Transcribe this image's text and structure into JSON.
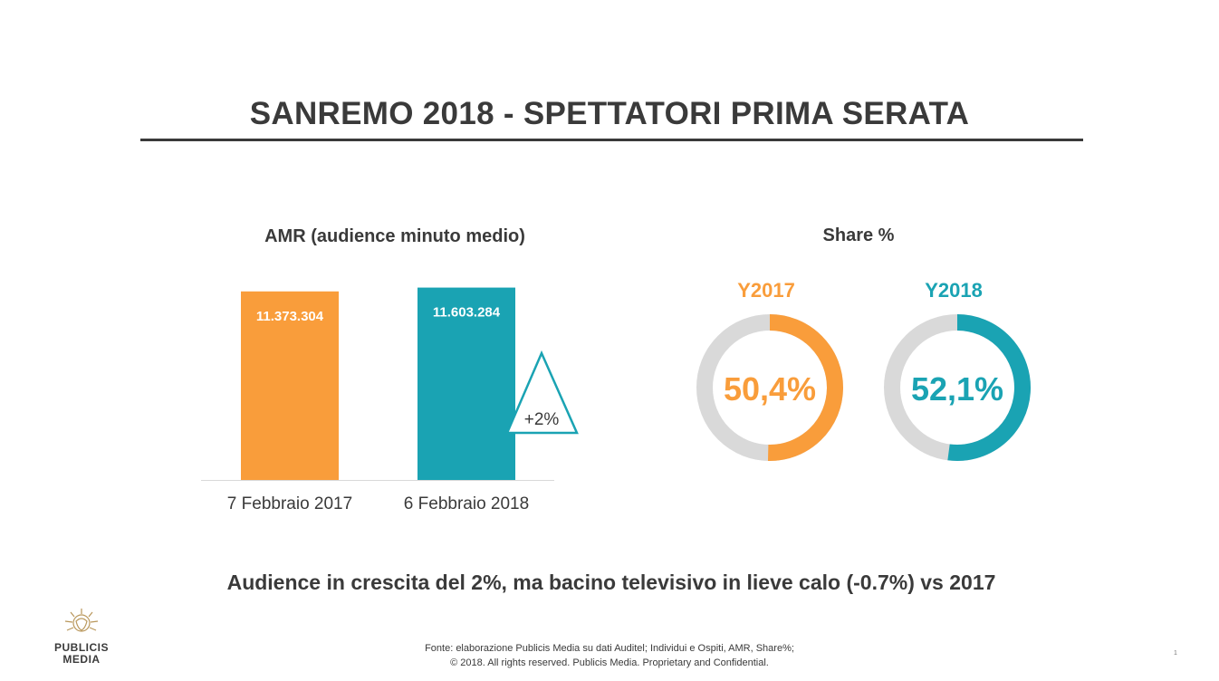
{
  "header": {
    "title": "SANREMO 2018 - SPETTATORI PRIMA SERATA"
  },
  "chart_data": [
    {
      "type": "bar",
      "title": "AMR (audience minuto medio)",
      "categories": [
        "7 Febbraio 2017",
        "6 Febbraio 2018"
      ],
      "values": [
        11373304,
        11603284
      ],
      "value_labels": [
        "11.373.304",
        "11.603.284"
      ],
      "colors": [
        "#f99d3b",
        "#1aa3b3"
      ],
      "annotation": "+2%",
      "xlabel": "",
      "ylabel": ""
    },
    {
      "type": "pie",
      "title": "Share %",
      "charts": [
        {
          "name": "Y2017",
          "value": 50.4,
          "label": "50,4%",
          "color": "#f99d3b"
        },
        {
          "name": "Y2018",
          "value": 52.1,
          "label": "52,1%",
          "color": "#1aa3b3"
        }
      ],
      "remainder_color": "#d9d9d9"
    }
  ],
  "summary": "Audience in crescita del 2%, ma bacino televisivo in lieve calo (-0.7%) vs 2017",
  "footer": {
    "source_line": "Fonte: elaborazione Publicis Media su dati Auditel; Individui e Ospiti, AMR, Share%;",
    "copyright_line": "© 2018. All rights reserved. Publicis Media. Proprietary and Confidential.",
    "logo_line1": "PUBLICIS",
    "logo_line2": "MEDIA",
    "page_number": "1"
  },
  "colors": {
    "text": "#3a3a3a",
    "orange": "#f99d3b",
    "teal": "#1aa3b3",
    "grey_ring": "#d9d9d9"
  }
}
